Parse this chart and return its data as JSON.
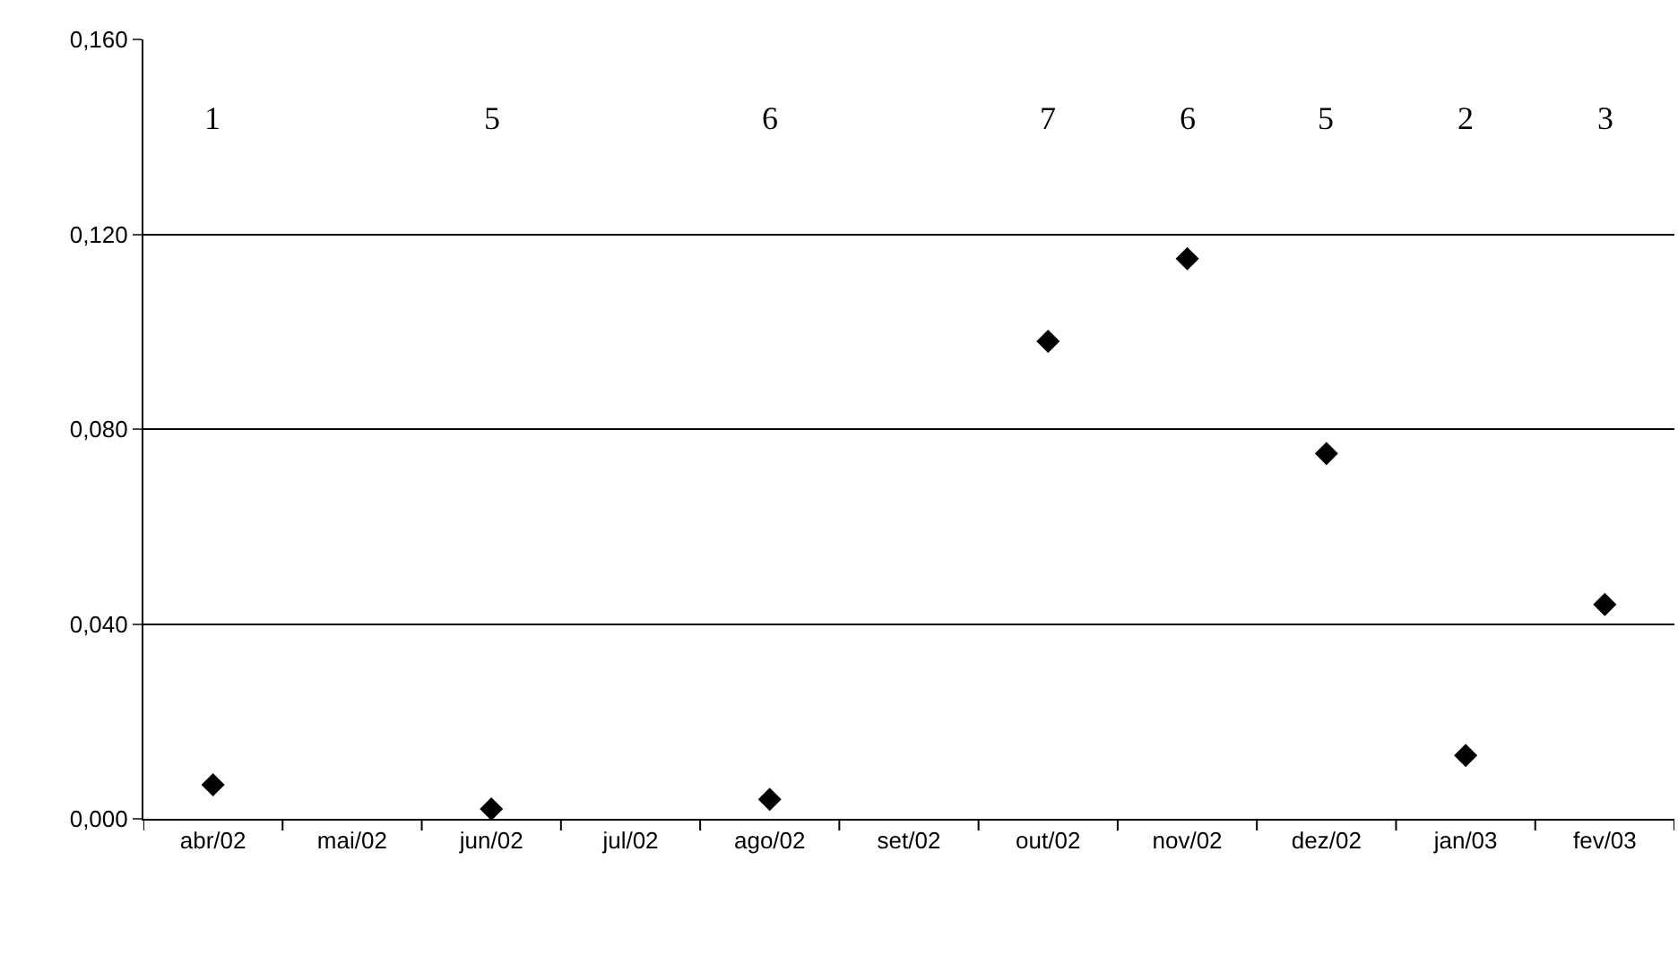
{
  "chart_data": {
    "type": "scatter",
    "categories": [
      "abr/02",
      "mai/02",
      "jun/02",
      "jul/02",
      "ago/02",
      "set/02",
      "out/02",
      "nov/02",
      "dez/02",
      "jan/03",
      "fev/03"
    ],
    "series": [
      {
        "color": "#000000",
        "values": [
          0.007,
          null,
          0.002,
          null,
          0.004,
          null,
          0.098,
          0.115,
          0.075,
          0.013,
          0.044
        ]
      }
    ],
    "ylim": [
      0,
      0.16
    ],
    "yticks": [
      {
        "value": 0,
        "label": "0,000"
      },
      {
        "value": 0.04,
        "label": "0,040"
      },
      {
        "value": 0.08,
        "label": "0,080"
      },
      {
        "value": 0.12,
        "label": "0,120"
      },
      {
        "value": 0.16,
        "label": "0,160"
      }
    ],
    "grid": "y",
    "legend": false,
    "marker": "diamond",
    "annotations": [
      "1",
      "5",
      "6",
      "7",
      "6",
      "5",
      "2",
      "3"
    ]
  }
}
